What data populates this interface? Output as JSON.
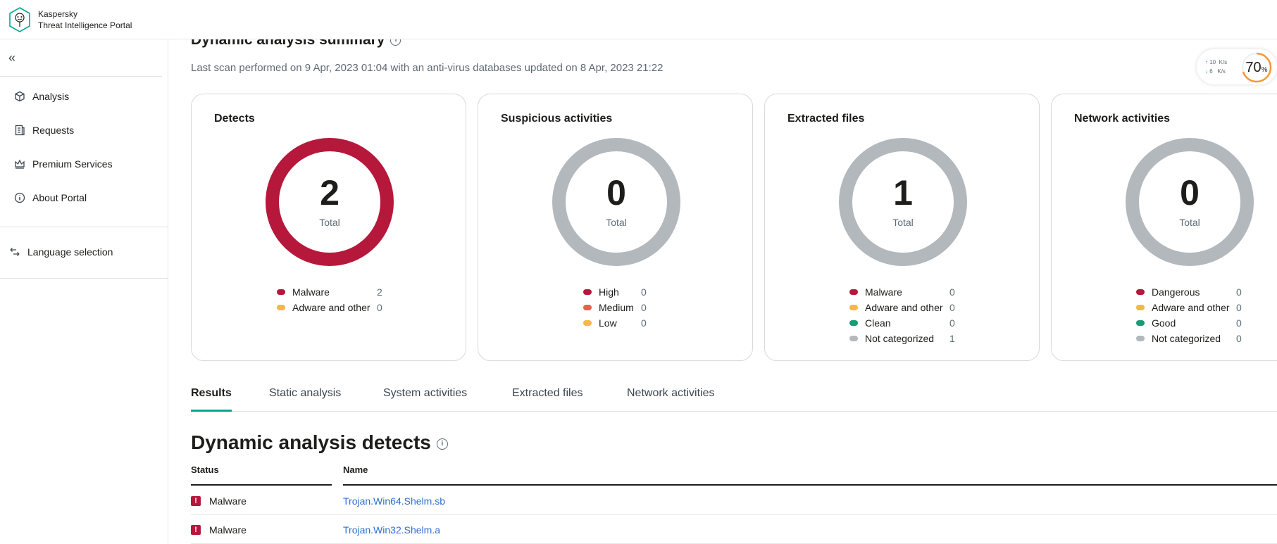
{
  "header": {
    "brand_line1": "Kaspersky",
    "brand_line2": "Threat Intelligence Portal"
  },
  "sidebar": {
    "collapse_icon": "double-chevron-left-icon",
    "items": [
      {
        "label": "Analysis",
        "icon": "cube-icon"
      },
      {
        "label": "Requests",
        "icon": "document-icon"
      },
      {
        "label": "Premium Services",
        "icon": "crown-icon"
      },
      {
        "label": "About Portal",
        "icon": "info-icon"
      }
    ],
    "language": {
      "label": "Language selection",
      "icon": "swap-arrows-icon"
    }
  },
  "summary": {
    "title": "Dynamic analysis summary",
    "scan_info": "Last scan performed on 9 Apr, 2023 01:04 with an anti-virus databases updated on 8 Apr, 2023 21:22"
  },
  "net_widget": {
    "up": "10",
    "down": "6",
    "unit": "K/s",
    "percent": "70",
    "percent_sign": "%",
    "percent_value": 70
  },
  "colors": {
    "malware": "#b5183a",
    "adware": "#f5b942",
    "medium": "#e8604c",
    "clean": "#1a9a76",
    "gray": "#b3b8bd",
    "accent": "#00a88e",
    "link": "#2f6fd0"
  },
  "cards": [
    {
      "title": "Detects",
      "total": "2",
      "total_label": "Total",
      "ring_color": "#b5183a",
      "legend": [
        {
          "label": "Malware",
          "value": "2",
          "color": "#b5183a"
        },
        {
          "label": "Adware and other",
          "value": "0",
          "color": "#f5b942"
        }
      ]
    },
    {
      "title": "Suspicious activities",
      "total": "0",
      "total_label": "Total",
      "ring_color": "#b3b8bd",
      "legend": [
        {
          "label": "High",
          "value": "0",
          "color": "#b5183a"
        },
        {
          "label": "Medium",
          "value": "0",
          "color": "#e8604c"
        },
        {
          "label": "Low",
          "value": "0",
          "color": "#f5b942"
        }
      ]
    },
    {
      "title": "Extracted files",
      "total": "1",
      "total_label": "Total",
      "ring_color": "#b3b8bd",
      "legend": [
        {
          "label": "Malware",
          "value": "0",
          "color": "#b5183a"
        },
        {
          "label": "Adware and other",
          "value": "0",
          "color": "#f5b942"
        },
        {
          "label": "Clean",
          "value": "0",
          "color": "#1a9a76"
        },
        {
          "label": "Not categorized",
          "value": "1",
          "color": "#b3b8bd"
        }
      ]
    },
    {
      "title": "Network activities",
      "total": "0",
      "total_label": "Total",
      "ring_color": "#b3b8bd",
      "legend": [
        {
          "label": "Dangerous",
          "value": "0",
          "color": "#b5183a"
        },
        {
          "label": "Adware and other",
          "value": "0",
          "color": "#f5b942"
        },
        {
          "label": "Good",
          "value": "0",
          "color": "#1a9a76"
        },
        {
          "label": "Not categorized",
          "value": "0",
          "color": "#b3b8bd"
        }
      ]
    }
  ],
  "tabs": [
    {
      "label": "Results",
      "active": true
    },
    {
      "label": "Static analysis",
      "active": false
    },
    {
      "label": "System activities",
      "active": false
    },
    {
      "label": "Extracted files",
      "active": false
    },
    {
      "label": "Network activities",
      "active": false
    }
  ],
  "detects": {
    "title": "Dynamic analysis detects",
    "columns": [
      "Status",
      "Name"
    ],
    "rows": [
      {
        "status": "Malware",
        "name": "Trojan.Win64.Shelm.sb"
      },
      {
        "status": "Malware",
        "name": "Trojan.Win32.Shelm.a"
      }
    ]
  }
}
